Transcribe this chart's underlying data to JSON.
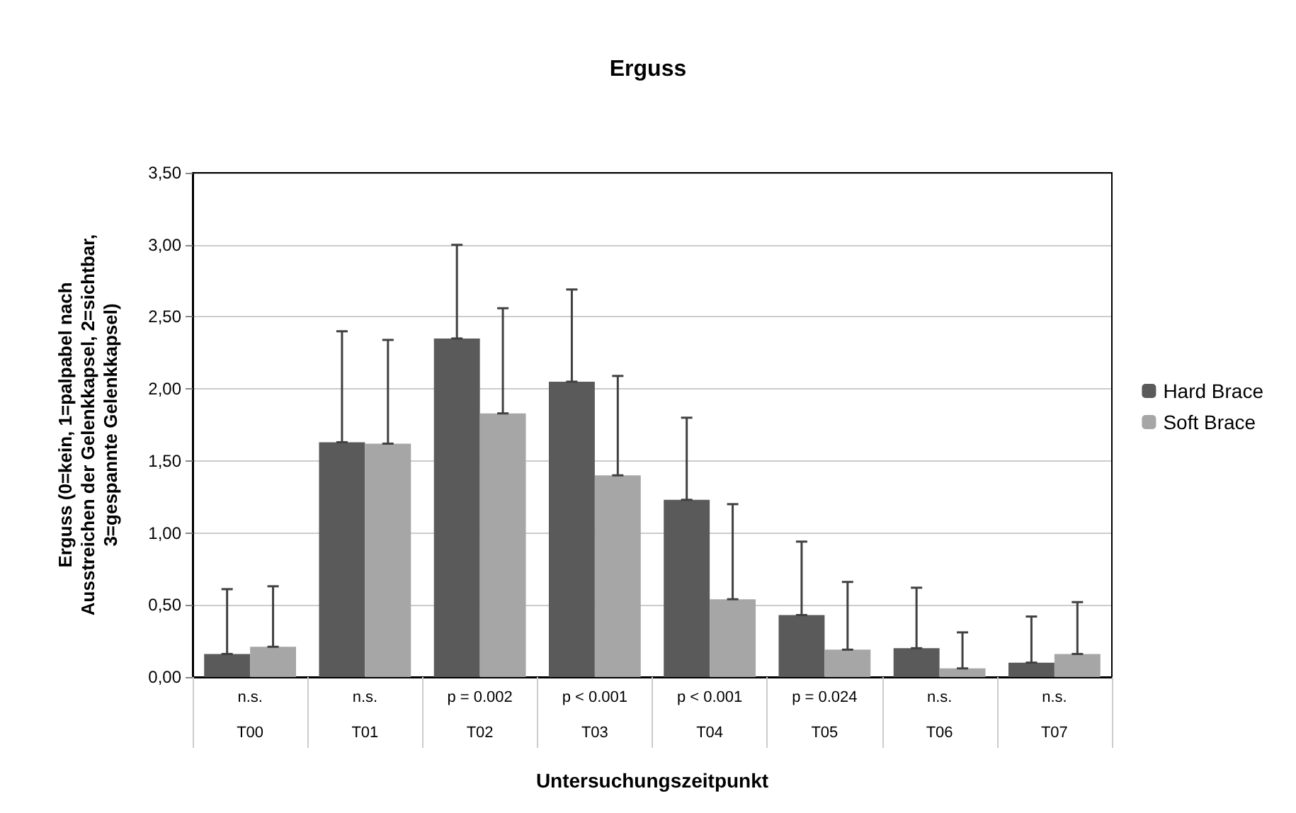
{
  "chart_data": {
    "type": "bar",
    "title": "Erguss",
    "xlabel": "Untersuchungszeitpunkt",
    "ylabel": "Erguss (0=kein, 1=palpabel nach\nAusstreichen der Gelenkkapsel, 2=sichtbar,\n3=gespannte Gelenkkapsel)",
    "categories": [
      "T00",
      "T01",
      "T02",
      "T03",
      "T04",
      "T05",
      "T06",
      "T07"
    ],
    "series": [
      {
        "name": "Hard Brace",
        "color": "#5a5a5a",
        "values": [
          0.16,
          1.63,
          2.35,
          2.05,
          1.23,
          0.43,
          0.2,
          0.1
        ],
        "errors": [
          [
            0.16,
            0.61
          ],
          [
            1.63,
            2.4
          ],
          [
            2.35,
            3.0
          ],
          [
            2.05,
            2.69
          ],
          [
            1.23,
            1.8
          ],
          [
            0.43,
            0.94
          ],
          [
            0.2,
            0.62
          ],
          [
            0.1,
            0.42
          ]
        ]
      },
      {
        "name": "Soft Brace",
        "color": "#a6a6a6",
        "values": [
          0.21,
          1.62,
          1.83,
          1.4,
          0.54,
          0.19,
          0.06,
          0.16
        ],
        "errors": [
          [
            0.21,
            0.63
          ],
          [
            1.62,
            2.34
          ],
          [
            1.83,
            2.56
          ],
          [
            1.4,
            2.09
          ],
          [
            0.54,
            1.2
          ],
          [
            0.19,
            0.66
          ],
          [
            0.06,
            0.31
          ],
          [
            0.16,
            0.52
          ]
        ]
      }
    ],
    "ylim": [
      0,
      3.5
    ],
    "yticks": [
      {
        "value": 0,
        "label": "0,00"
      },
      {
        "value": 0.5,
        "label": "0,50"
      },
      {
        "value": 1,
        "label": "1,00"
      },
      {
        "value": 1.5,
        "label": "1,50"
      },
      {
        "value": 2,
        "label": "2,00"
      },
      {
        "value": 2.5,
        "label": "2,50"
      },
      {
        "value": 3,
        "label": "3,00"
      },
      {
        "value": 3.5,
        "label": "3,50"
      }
    ],
    "grid": "y",
    "legend": "right",
    "annotations": [
      "n.s.",
      "n.s.",
      "p = 0.002",
      "p < 0.001",
      "p < 0.001",
      "p = 0.024",
      "n.s.",
      "n.s."
    ]
  }
}
